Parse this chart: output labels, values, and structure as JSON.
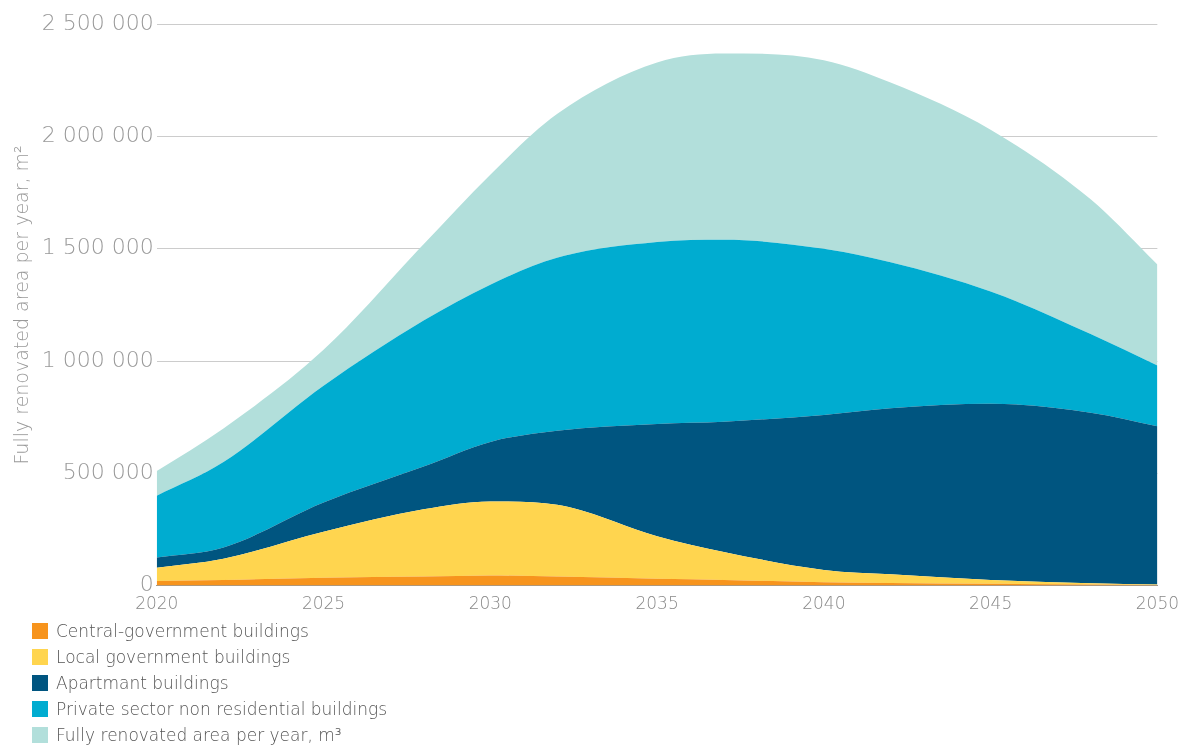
{
  "chart_data": {
    "type": "area",
    "stacked": true,
    "ylabel": "Fully renovated area per year, m²",
    "x": [
      2020,
      2022,
      2025,
      2028,
      2030,
      2032,
      2035,
      2037,
      2040,
      2042,
      2045,
      2048,
      2050
    ],
    "series": [
      {
        "name": "Central-government buildings",
        "color": "#f7941d",
        "values": [
          20000,
          25000,
          35000,
          40000,
          45000,
          40000,
          30000,
          25000,
          15000,
          12000,
          8000,
          5000,
          3000
        ]
      },
      {
        "name": "Local government buildings",
        "color": "#ffd54f",
        "values": [
          60000,
          95000,
          205000,
          300000,
          330000,
          320000,
          190000,
          125000,
          55000,
          38000,
          17000,
          5000,
          2000
        ]
      },
      {
        "name": "Apartmant buildings",
        "color": "#005580",
        "values": [
          45000,
          50000,
          130000,
          190000,
          265000,
          330000,
          500000,
          580000,
          690000,
          740000,
          785000,
          760000,
          705000
        ]
      },
      {
        "name": "Private sector non residential buildings",
        "color": "#00acd0",
        "values": [
          275000,
          380000,
          520000,
          650000,
          700000,
          770000,
          810000,
          810000,
          740000,
          650000,
          500000,
          350000,
          270000
        ]
      },
      {
        "name": "Fully renovated area per year, m³",
        "color": "#b2dfdb",
        "values": [
          110000,
          150000,
          160000,
          340000,
          490000,
          640000,
          800000,
          830000,
          840000,
          800000,
          720000,
          600000,
          450000
        ]
      }
    ],
    "xlim": [
      2020,
      2050
    ],
    "xticks": [
      2020,
      2025,
      2030,
      2035,
      2040,
      2045,
      2050
    ],
    "ylim": [
      0,
      2500000
    ],
    "yticks": [
      {
        "value": 0,
        "label": "0"
      },
      {
        "value": 500000,
        "label": "500 000"
      },
      {
        "value": 1000000,
        "label": "1 000 000"
      },
      {
        "value": 1500000,
        "label": "1 500 000"
      },
      {
        "value": 2000000,
        "label": "2 000 000"
      },
      {
        "value": 2500000,
        "label": "2 500 000"
      }
    ],
    "grid": "y",
    "legend": "bottom"
  }
}
